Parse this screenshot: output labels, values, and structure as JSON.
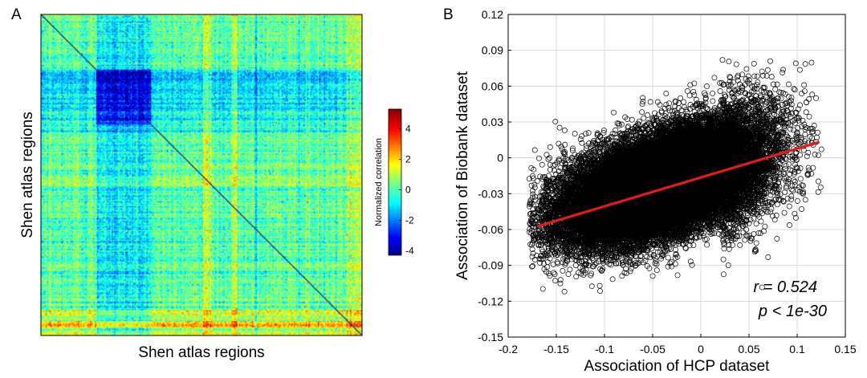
{
  "colors": {
    "line": "#e41a1c",
    "marker": "#000000",
    "grid": "#d9d9d9"
  },
  "chart_data": [
    {
      "panel_label": "A",
      "type": "heatmap",
      "xlabel": "Shen atlas regions",
      "ylabel": "Shen atlas regions",
      "colorbar": {
        "label": "Normalized correlation",
        "range": [
          -4.3,
          5.3
        ],
        "ticks": [
          4,
          2,
          0,
          -2,
          -4
        ],
        "colormap": "jet"
      }
    },
    {
      "panel_label": "B",
      "type": "scatter",
      "xlabel": "Association of HCP dataset",
      "ylabel": "Association of Biobank dataset",
      "xlim": [
        -0.2,
        0.15
      ],
      "ylim": [
        -0.15,
        0.12
      ],
      "xticks": [
        "-0.2",
        "-0.15",
        "-0.1",
        "-0.05",
        "0",
        "0.05",
        "0.1",
        "0.15"
      ],
      "yticks": [
        "0.12",
        "0.09",
        "0.06",
        "0.03",
        "0",
        "-0.03",
        "-0.06",
        "-0.09",
        "-0.12",
        "-0.15"
      ],
      "grid": true,
      "fit_line": {
        "x": [
          -0.168,
          0.122
        ],
        "y": [
          -0.057,
          0.013
        ]
      },
      "annotation_r": "r = 0.524",
      "annotation_p": "p < 1e-30",
      "point_cloud": {
        "n_approx": 30000,
        "x_center": -0.04,
        "y_center": -0.022,
        "r": 0.524
      }
    }
  ]
}
